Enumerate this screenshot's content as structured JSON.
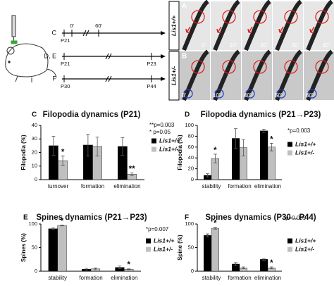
{
  "timeline": {
    "rows": [
      {
        "label": "C",
        "start": "P21",
        "ticks": [
          "0'",
          "60'"
        ]
      },
      {
        "label": "D, E",
        "start": "P21",
        "end": "P23"
      },
      {
        "label": "F",
        "start": "P30",
        "end": "P44"
      }
    ]
  },
  "images": [
    {
      "panel": "A",
      "genotype": "Lis1+/+",
      "times": [
        "0'",
        "10'",
        "20'",
        "30'",
        "40'"
      ]
    },
    {
      "panel": "B",
      "genotype": "Lis1+/-",
      "times": [
        "0'",
        "10'",
        "40'",
        "50'",
        "60'"
      ]
    }
  ],
  "chart_data": [
    {
      "type": "bar",
      "letter": "C",
      "title": "Filopodia dynamics (P21)",
      "y_label": "Filopodia (%)",
      "categories": [
        "turnover",
        "formation",
        "elimination"
      ],
      "series": [
        {
          "name": "Lis1+/+",
          "color": "#000000",
          "values": [
            25,
            25.5,
            24.5
          ],
          "errors": [
            7,
            8,
            6.5
          ],
          "significance": [
            null,
            null,
            null
          ]
        },
        {
          "name": "Lis1+/-",
          "color": "#bfbfbf",
          "values": [
            14,
            24.5,
            4
          ],
          "errors": [
            3.5,
            7,
            1
          ],
          "significance": [
            "*",
            null,
            "**"
          ]
        }
      ],
      "ylim": [
        0,
        40
      ],
      "yticks": [
        0,
        10,
        20,
        30,
        40
      ],
      "notes": [
        "**p=0.003",
        "* p=0.05"
      ]
    },
    {
      "type": "bar",
      "letter": "D",
      "title": "Filopodia dynamics (P21→P23)",
      "y_label": "Filopodia (%)",
      "categories": [
        "stability",
        "formation",
        "elimination"
      ],
      "series": [
        {
          "name": "Lis1+/+",
          "color": "#000000",
          "values": [
            8,
            76,
            90
          ],
          "errors": [
            3,
            18,
            3
          ],
          "significance": [
            null,
            null,
            null
          ]
        },
        {
          "name": "Lis1+/-",
          "color": "#bfbfbf",
          "values": [
            39,
            59,
            60
          ],
          "errors": [
            8,
            15,
            7
          ],
          "significance": [
            "*",
            null,
            "*"
          ]
        }
      ],
      "ylim": [
        0,
        100
      ],
      "yticks": [
        0,
        20,
        40,
        60,
        80,
        100
      ],
      "notes": [
        "*p=0.003"
      ]
    },
    {
      "type": "bar",
      "letter": "E",
      "title": "Spines dynamics (P21→P23)",
      "y_label": "Spines (%)",
      "categories": [
        "stability",
        "formation",
        "elimination"
      ],
      "series": [
        {
          "name": "Lis1+/+",
          "color": "#000000",
          "values": [
            90,
            4,
            8
          ],
          "errors": [
            2,
            2,
            3
          ],
          "significance": [
            null,
            null,
            null
          ]
        },
        {
          "name": "Lis1+/-",
          "color": "#bfbfbf",
          "values": [
            97,
            5,
            4
          ],
          "errors": [
            1,
            2,
            1
          ],
          "significance": [
            "*",
            null,
            "*"
          ]
        }
      ],
      "ylim": [
        0,
        100
      ],
      "yticks": [
        0,
        50,
        100
      ],
      "notes": [
        "*p=0.007"
      ]
    },
    {
      "type": "bar",
      "letter": "F",
      "title": "Spines dynamics (P30→P44)",
      "y_label": "Spine (%)",
      "categories": [
        "stability",
        "formation",
        "elimination"
      ],
      "series": [
        {
          "name": "Lis1+/+",
          "color": "#000000",
          "values": [
            76,
            15,
            25
          ],
          "errors": [
            3,
            3,
            2
          ],
          "significance": [
            null,
            null,
            null
          ]
        },
        {
          "name": "Lis1+/-",
          "color": "#bfbfbf",
          "values": [
            91,
            7,
            7
          ],
          "errors": [
            2,
            2,
            2
          ],
          "significance": [
            "*",
            null,
            "*"
          ]
        }
      ],
      "ylim": [
        0,
        100
      ],
      "yticks": [
        0,
        50,
        100
      ],
      "notes": [
        "*p=0.009"
      ]
    }
  ]
}
